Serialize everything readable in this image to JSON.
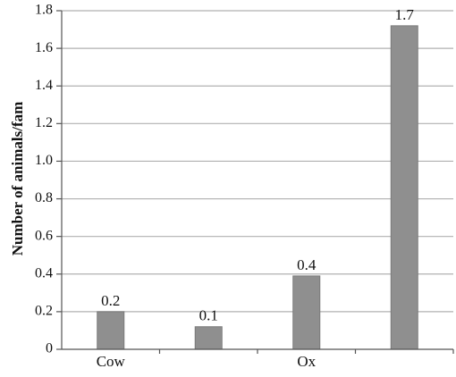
{
  "chart_data": {
    "type": "bar",
    "categories": [
      "Cow",
      "",
      "Ox",
      ""
    ],
    "values": [
      0.2,
      0.12,
      0.39,
      1.72
    ],
    "data_labels": [
      "0.2",
      "0.1",
      "0.4",
      "1.7"
    ],
    "xlabel": "",
    "ylabel": "Number of animals/fam",
    "ylim": [
      0,
      1.8
    ],
    "yticks": [
      "0",
      "0.2",
      "0.4",
      "0.6",
      "0.8",
      "1.0",
      "1.2",
      "1.4",
      "1.6",
      "1.8"
    ],
    "grid": true,
    "legend": "none",
    "colors": {
      "bar_fill": "#8f8f8f",
      "bar_stroke": "#7a7a7a",
      "grid": "#b0b0b0",
      "axis": "#555555"
    }
  }
}
